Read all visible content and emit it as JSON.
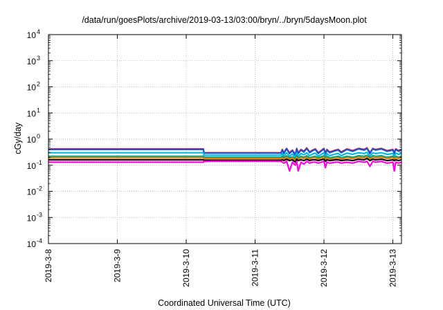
{
  "chart_data": {
    "type": "line",
    "title": "/data/run/goesPlots/archive/2019-03-13/03:00/bryn/../bryn/5daysMoon.plot",
    "xlabel": "Coordinated Universal Time (UTC)",
    "ylabel": "cGy/day",
    "x_range": [
      "2019-03-08",
      "2019-03-13T03:00"
    ],
    "y_scale": "log",
    "ylim": [
      0.0001,
      10000
    ],
    "grid": true,
    "x_ticks": [
      {
        "value": "2019-03-08",
        "label": "2019-3-8"
      },
      {
        "value": "2019-03-09",
        "label": "2019-3-9"
      },
      {
        "value": "2019-03-10",
        "label": "2019-3-10"
      },
      {
        "value": "2019-03-11",
        "label": "2019-3-11"
      },
      {
        "value": "2019-03-12",
        "label": "2019-3-12"
      },
      {
        "value": "2019-03-13",
        "label": "2019-3-13"
      }
    ],
    "y_ticks": [
      {
        "value": 0.0001,
        "base": "10",
        "exp": "-4"
      },
      {
        "value": 0.001,
        "base": "10",
        "exp": "-3"
      },
      {
        "value": 0.01,
        "base": "10",
        "exp": "-2"
      },
      {
        "value": 0.1,
        "base": "10",
        "exp": "-1"
      },
      {
        "value": 1,
        "base": "10",
        "exp": "0"
      },
      {
        "value": 10,
        "base": "10",
        "exp": "1"
      },
      {
        "value": 100,
        "base": "10",
        "exp": "2"
      },
      {
        "value": 1000,
        "base": "10",
        "exp": "3"
      },
      {
        "value": 10000,
        "base": "10",
        "exp": "4"
      }
    ],
    "x": [
      "2019-03-08T00:00",
      "2019-03-10T06:00",
      "2019-03-10T06:10",
      "2019-03-11T09:00",
      "2019-03-11T09:30",
      "2019-03-11T10:00",
      "2019-03-11T11:00",
      "2019-03-11T12:00",
      "2019-03-11T13:00",
      "2019-03-11T14:00",
      "2019-03-11T14:30",
      "2019-03-11T15:00",
      "2019-03-11T16:00",
      "2019-03-11T17:00",
      "2019-03-11T18:00",
      "2019-03-11T19:00",
      "2019-03-11T20:00",
      "2019-03-11T21:00",
      "2019-03-11T22:00",
      "2019-03-12T00:00",
      "2019-03-12T00:30",
      "2019-03-12T01:00",
      "2019-03-12T02:00",
      "2019-03-12T04:00",
      "2019-03-12T05:00",
      "2019-03-12T06:00",
      "2019-03-12T08:00",
      "2019-03-12T10:00",
      "2019-03-12T12:00",
      "2019-03-12T14:00",
      "2019-03-12T15:00",
      "2019-03-12T16:00",
      "2019-03-12T17:00",
      "2019-03-12T18:00",
      "2019-03-12T20:00",
      "2019-03-12T22:00",
      "2019-03-13T00:00",
      "2019-03-13T00:30",
      "2019-03-13T01:00",
      "2019-03-13T02:00",
      "2019-03-13T03:00"
    ],
    "series": [
      {
        "color": "#e02020",
        "values": [
          0.42,
          0.42,
          0.3,
          0.3,
          0.4,
          0.3,
          0.44,
          0.3,
          0.38,
          0.26,
          0.44,
          0.3,
          0.4,
          0.34,
          0.46,
          0.32,
          0.38,
          0.42,
          0.3,
          0.44,
          0.28,
          0.4,
          0.32,
          0.38,
          0.4,
          0.32,
          0.42,
          0.36,
          0.44,
          0.4,
          0.46,
          0.3,
          0.44,
          0.4,
          0.44,
          0.36,
          0.4,
          0.3,
          0.42,
          0.36,
          0.4
        ]
      },
      {
        "color": "#2050d0",
        "values": [
          0.4,
          0.4,
          0.29,
          0.29,
          0.38,
          0.28,
          0.42,
          0.28,
          0.36,
          0.24,
          0.42,
          0.28,
          0.38,
          0.32,
          0.44,
          0.3,
          0.36,
          0.4,
          0.28,
          0.42,
          0.26,
          0.38,
          0.3,
          0.36,
          0.38,
          0.3,
          0.4,
          0.34,
          0.42,
          0.38,
          0.44,
          0.28,
          0.42,
          0.38,
          0.42,
          0.34,
          0.38,
          0.28,
          0.4,
          0.34,
          0.38
        ]
      },
      {
        "color": "#00b8e0",
        "values": [
          0.3,
          0.3,
          0.24,
          0.24,
          0.28,
          0.22,
          0.3,
          0.22,
          0.27,
          0.2,
          0.3,
          0.22,
          0.28,
          0.25,
          0.3,
          0.23,
          0.27,
          0.29,
          0.22,
          0.3,
          0.21,
          0.28,
          0.23,
          0.27,
          0.28,
          0.23,
          0.29,
          0.26,
          0.3,
          0.28,
          0.31,
          0.22,
          0.3,
          0.28,
          0.3,
          0.26,
          0.28,
          0.22,
          0.29,
          0.26,
          0.28
        ]
      },
      {
        "color": "#00a080",
        "values": [
          0.22,
          0.22,
          0.2,
          0.2,
          0.22,
          0.19,
          0.23,
          0.19,
          0.21,
          0.17,
          0.23,
          0.19,
          0.22,
          0.2,
          0.23,
          0.19,
          0.21,
          0.22,
          0.19,
          0.23,
          0.18,
          0.22,
          0.19,
          0.21,
          0.22,
          0.19,
          0.22,
          0.2,
          0.23,
          0.22,
          0.24,
          0.19,
          0.23,
          0.22,
          0.23,
          0.2,
          0.22,
          0.19,
          0.22,
          0.2,
          0.22
        ]
      },
      {
        "color": "#e08000",
        "values": [
          0.19,
          0.19,
          0.18,
          0.18,
          0.19,
          0.17,
          0.2,
          0.17,
          0.19,
          0.15,
          0.2,
          0.17,
          0.19,
          0.18,
          0.2,
          0.17,
          0.19,
          0.19,
          0.17,
          0.2,
          0.16,
          0.19,
          0.17,
          0.18,
          0.19,
          0.17,
          0.19,
          0.18,
          0.2,
          0.19,
          0.21,
          0.17,
          0.2,
          0.19,
          0.2,
          0.18,
          0.19,
          0.17,
          0.19,
          0.18,
          0.19
        ]
      },
      {
        "color": "#101010",
        "values": [
          0.16,
          0.16,
          0.155,
          0.155,
          0.16,
          0.15,
          0.17,
          0.15,
          0.16,
          0.13,
          0.17,
          0.15,
          0.16,
          0.15,
          0.17,
          0.15,
          0.16,
          0.16,
          0.15,
          0.17,
          0.14,
          0.16,
          0.15,
          0.16,
          0.16,
          0.15,
          0.16,
          0.15,
          0.17,
          0.16,
          0.18,
          0.15,
          0.17,
          0.16,
          0.17,
          0.15,
          0.16,
          0.15,
          0.16,
          0.15,
          0.16
        ]
      },
      {
        "color": "#ff00e0",
        "values": [
          0.13,
          0.13,
          0.14,
          0.14,
          0.13,
          0.12,
          0.14,
          0.06,
          0.13,
          0.1,
          0.14,
          0.06,
          0.13,
          0.11,
          0.14,
          0.12,
          0.13,
          0.13,
          0.12,
          0.14,
          0.08,
          0.13,
          0.12,
          0.13,
          0.13,
          0.12,
          0.13,
          0.12,
          0.14,
          0.13,
          0.14,
          0.09,
          0.14,
          0.13,
          0.14,
          0.12,
          0.13,
          0.06,
          0.13,
          0.12,
          0.13
        ]
      }
    ]
  }
}
